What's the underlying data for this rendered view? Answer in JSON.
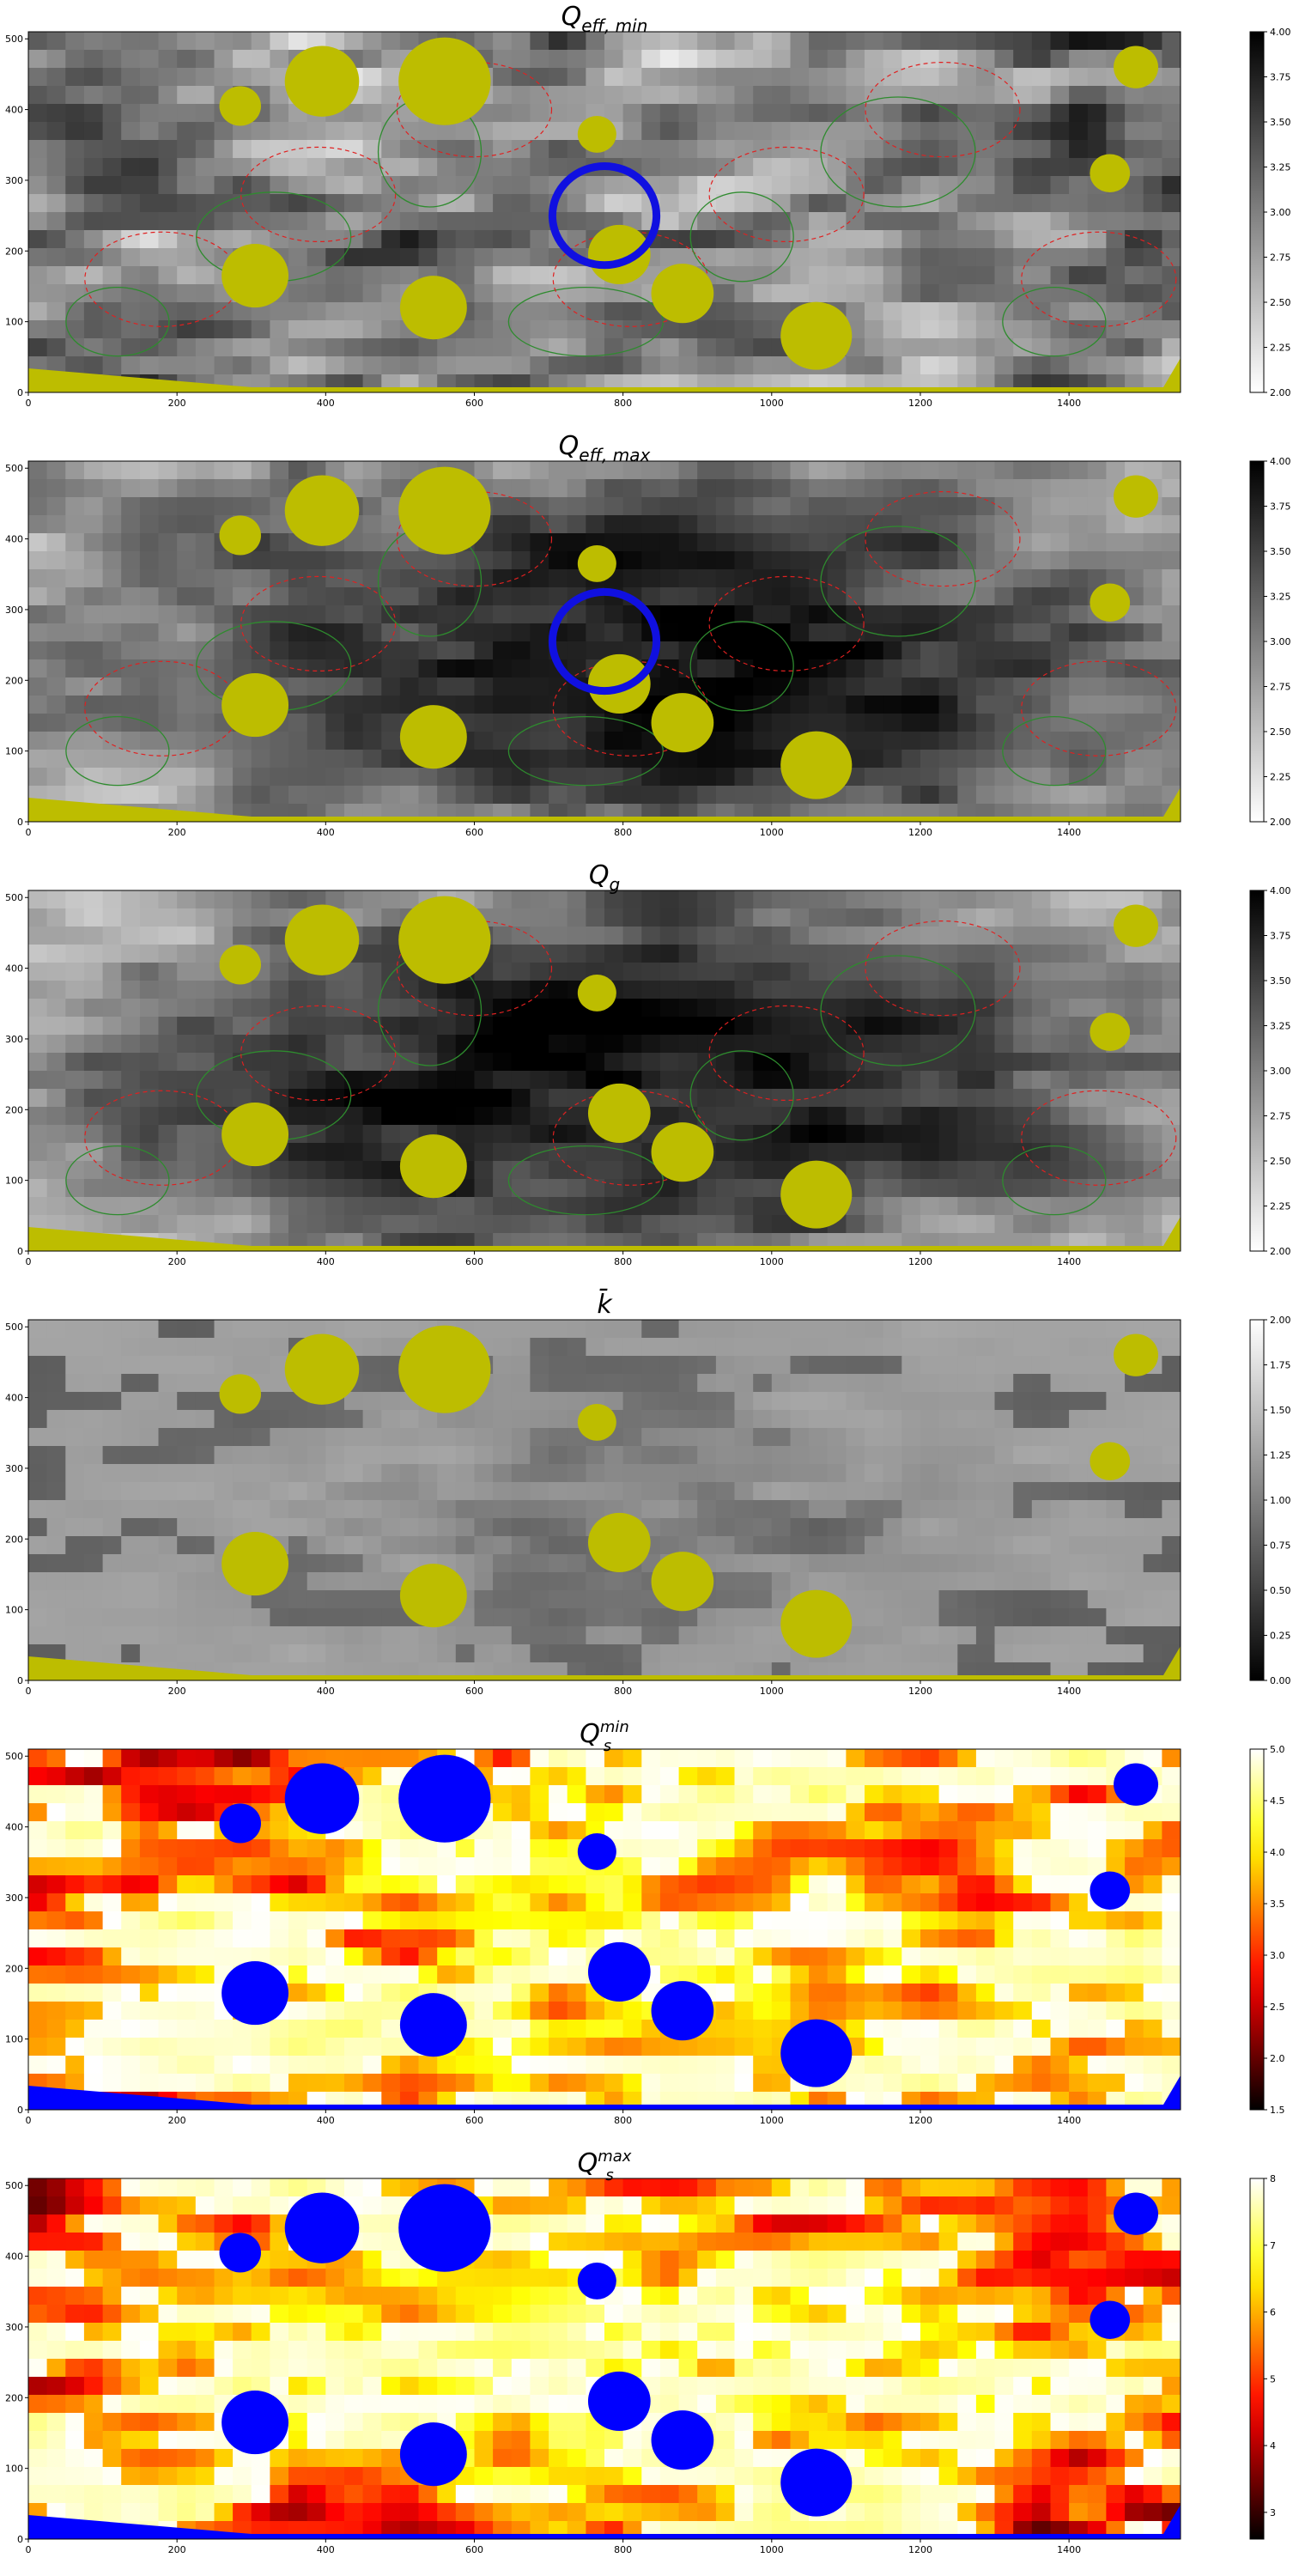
{
  "chart_data": [
    {
      "type": "heatmap",
      "title": "Q_eff,min",
      "title_main": "Q",
      "title_sub": "eff, min",
      "title_style": "subscript",
      "colormap": "gray_r",
      "xlim": [
        0,
        1550
      ],
      "ylim": [
        0,
        510
      ],
      "xticks": [
        0,
        200,
        400,
        600,
        800,
        1000,
        1200,
        1400
      ],
      "yticks": [
        0,
        100,
        200,
        300,
        400,
        500
      ],
      "colorbar": {
        "min": 2.0,
        "max": 4.0,
        "ticks": [
          "2.00",
          "2.25",
          "2.50",
          "2.75",
          "3.00",
          "3.25",
          "3.50",
          "3.75",
          "4.00"
        ]
      },
      "contours": {
        "green": true,
        "red_dashed": true
      },
      "mask_color": "#bdbd00",
      "circle": {
        "x": 775,
        "y": 250,
        "r": 70
      }
    },
    {
      "type": "heatmap",
      "title": "Q_eff,max",
      "title_main": "Q",
      "title_sub": "eff, max",
      "title_style": "subscript",
      "colormap": "gray_r",
      "xlim": [
        0,
        1550
      ],
      "ylim": [
        0,
        510
      ],
      "xticks": [
        0,
        200,
        400,
        600,
        800,
        1000,
        1200,
        1400
      ],
      "yticks": [
        0,
        100,
        200,
        300,
        400,
        500
      ],
      "colorbar": {
        "min": 2.0,
        "max": 4.0,
        "ticks": [
          "2.00",
          "2.25",
          "2.50",
          "2.75",
          "3.00",
          "3.25",
          "3.50",
          "3.75",
          "4.00"
        ]
      },
      "contours": {
        "green": true,
        "red_dashed": true
      },
      "mask_color": "#bdbd00",
      "circle": {
        "x": 775,
        "y": 255,
        "r": 70
      }
    },
    {
      "type": "heatmap",
      "title": "Q_g",
      "title_main": "Q",
      "title_sub": "g",
      "title_style": "subscript",
      "colormap": "gray_r",
      "xlim": [
        0,
        1550
      ],
      "ylim": [
        0,
        510
      ],
      "xticks": [
        0,
        200,
        400,
        600,
        800,
        1000,
        1200,
        1400
      ],
      "yticks": [
        0,
        100,
        200,
        300,
        400,
        500
      ],
      "colorbar": {
        "min": 2.0,
        "max": 4.0,
        "ticks": [
          "2.00",
          "2.25",
          "2.50",
          "2.75",
          "3.00",
          "3.25",
          "3.50",
          "3.75",
          "4.00"
        ]
      },
      "contours": {
        "green": true,
        "red_dashed": true
      },
      "mask_color": "#bdbd00"
    },
    {
      "type": "heatmap",
      "title": "k̄",
      "title_main": "k̄",
      "title_sub": "",
      "title_style": "plain",
      "colormap": "gray",
      "xlim": [
        0,
        1550
      ],
      "ylim": [
        0,
        510
      ],
      "xticks": [
        0,
        200,
        400,
        600,
        800,
        1000,
        1200,
        1400
      ],
      "yticks": [
        0,
        100,
        200,
        300,
        400,
        500
      ],
      "colorbar": {
        "min": 0.0,
        "max": 2.0,
        "ticks": [
          "0.00",
          "0.25",
          "0.50",
          "0.75",
          "1.00",
          "1.25",
          "1.50",
          "1.75",
          "2.00"
        ]
      },
      "mask_color": "#bdbd00"
    },
    {
      "type": "heatmap",
      "title": "Q_s^min",
      "title_main": "Q",
      "title_sub": "s",
      "title_sup": "min",
      "title_style": "subsup",
      "colormap": "hot",
      "xlim": [
        0,
        1550
      ],
      "ylim": [
        0,
        510
      ],
      "xticks": [
        0,
        200,
        400,
        600,
        800,
        1000,
        1200,
        1400
      ],
      "yticks": [
        0,
        100,
        200,
        300,
        400,
        500
      ],
      "colorbar": {
        "min": 1.5,
        "max": 5.0,
        "ticks": [
          "1.5",
          "2.0",
          "2.5",
          "3.0",
          "3.5",
          "4.0",
          "4.5",
          "5.0"
        ]
      },
      "mask_color": "#0000ff"
    },
    {
      "type": "heatmap",
      "title": "Q_s^max",
      "title_main": "Q",
      "title_sub": "s",
      "title_sup": "max",
      "title_style": "subsup",
      "colormap": "hot",
      "xlim": [
        0,
        1550
      ],
      "ylim": [
        0,
        510
      ],
      "xticks": [
        0,
        200,
        400,
        600,
        800,
        1000,
        1200,
        1400
      ],
      "yticks": [
        0,
        100,
        200,
        300,
        400,
        500
      ],
      "colorbar": {
        "min": 2.6,
        "max": 8.0,
        "ticks": [
          "3",
          "4",
          "5",
          "6",
          "7",
          "8"
        ]
      },
      "mask_color": "#0000ff"
    }
  ],
  "masked_regions": [
    {
      "x": 285,
      "y": 405,
      "r": 28
    },
    {
      "x": 395,
      "y": 440,
      "r": 50
    },
    {
      "x": 560,
      "y": 440,
      "r": 62
    },
    {
      "x": 765,
      "y": 365,
      "r": 26
    },
    {
      "x": 305,
      "y": 165,
      "r": 45
    },
    {
      "x": 545,
      "y": 120,
      "r": 45
    },
    {
      "x": 795,
      "y": 195,
      "r": 42
    },
    {
      "x": 880,
      "y": 140,
      "r": 42
    },
    {
      "x": 1060,
      "y": 80,
      "r": 48
    },
    {
      "x": 1490,
      "y": 460,
      "r": 30
    },
    {
      "x": 1455,
      "y": 310,
      "r": 27
    }
  ]
}
